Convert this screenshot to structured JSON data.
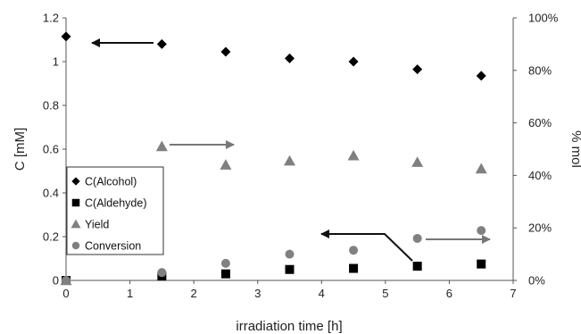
{
  "chart_data": {
    "type": "scatter",
    "title": "",
    "xlabel": "irradiation time [h]",
    "ylabel": "C [mM]",
    "y2label": "% mol",
    "xlim": [
      0,
      7
    ],
    "ylim": [
      0,
      1.2
    ],
    "y2lim": [
      0,
      100
    ],
    "xticks": [
      "0",
      "1",
      "2",
      "3",
      "4",
      "5",
      "6",
      "7"
    ],
    "yticks": [
      "0",
      "0.2",
      "0.4",
      "0.6",
      "0.8",
      "1",
      "1.2"
    ],
    "y2ticks": [
      "0%",
      "20%",
      "40%",
      "60%",
      "80%",
      "100%"
    ],
    "grid": false,
    "legend_position": "left",
    "series": [
      {
        "name": "C(Alcohol)",
        "axis": "left",
        "marker": "diamond",
        "color": "#000000",
        "x": [
          0,
          1.5,
          2.5,
          3.5,
          4.5,
          5.5,
          6.5
        ],
        "y": [
          1.115,
          1.08,
          1.045,
          1.015,
          1.0,
          0.965,
          0.935
        ]
      },
      {
        "name": "C(Aldehyde)",
        "axis": "left",
        "marker": "square",
        "color": "#000000",
        "x": [
          0,
          1.5,
          2.5,
          3.5,
          4.5,
          5.5,
          6.5
        ],
        "y": [
          0.0,
          0.02,
          0.03,
          0.05,
          0.055,
          0.065,
          0.075
        ]
      },
      {
        "name": "Yield",
        "axis": "right",
        "marker": "triangle",
        "color": "#808080",
        "x": [
          0,
          1.5,
          2.5,
          3.5,
          4.5,
          5.5,
          6.5
        ],
        "y": [
          0,
          51,
          44,
          45.5,
          47.5,
          45,
          42.5
        ]
      },
      {
        "name": "Conversion",
        "axis": "right",
        "marker": "circle",
        "color": "#808080",
        "x": [
          0,
          1.5,
          2.5,
          3.5,
          4.5,
          5.5,
          6.5
        ],
        "y": [
          0,
          3,
          6.5,
          10,
          11.5,
          16,
          19
        ]
      }
    ]
  }
}
